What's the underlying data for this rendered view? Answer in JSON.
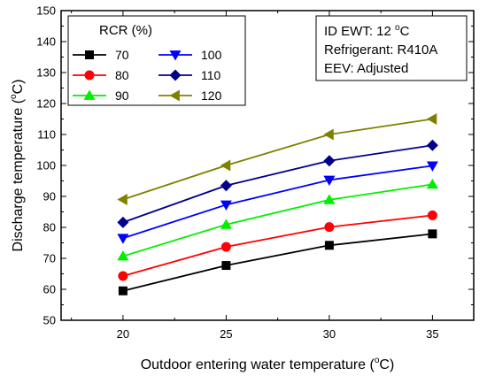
{
  "chart_data": {
    "type": "line",
    "title": "",
    "xlabel": "Outdoor entering water temperature (",
    "xlabel_sup": "o",
    "xlabel_end": "C)",
    "ylabel": "Discharge temperature (",
    "ylabel_sup": "o",
    "ylabel_end": "C)",
    "xlim": [
      17,
      37
    ],
    "ylim": [
      50,
      150
    ],
    "x": [
      20,
      25,
      30,
      35
    ],
    "x_ticks": [
      "20",
      "25",
      "30",
      "35"
    ],
    "y_ticks": [
      "50",
      "60",
      "70",
      "80",
      "90",
      "100",
      "110",
      "120",
      "130",
      "140",
      "150"
    ],
    "legend_title": "RCR (%)",
    "legend_position": "top-left",
    "series": [
      {
        "name": "70",
        "color": "#000000",
        "marker": "square",
        "values": [
          59.5,
          67.7,
          74.2,
          77.9
        ]
      },
      {
        "name": "80",
        "color": "#ff0000",
        "marker": "circle",
        "values": [
          64.3,
          73.7,
          80.1,
          83.9
        ]
      },
      {
        "name": "90",
        "color": "#00ee00",
        "marker": "triangle-up",
        "values": [
          70.7,
          80.9,
          88.9,
          93.9
        ]
      },
      {
        "name": "100",
        "color": "#0000ff",
        "marker": "triangle-down",
        "values": [
          76.5,
          87.3,
          95.3,
          99.9
        ]
      },
      {
        "name": "110",
        "color": "#00008b",
        "marker": "diamond",
        "values": [
          81.6,
          93.5,
          101.5,
          106.5
        ]
      },
      {
        "name": "120",
        "color": "#808000",
        "marker": "triangle-left",
        "values": [
          89.0,
          100.0,
          110.0,
          115.0
        ]
      }
    ],
    "annotation": {
      "line1": "ID EWT: 12 ",
      "line1_sup": "o",
      "line1_end": "C",
      "line2": "Refrigerant: R410A",
      "line3": "EEV: Adjusted"
    }
  }
}
